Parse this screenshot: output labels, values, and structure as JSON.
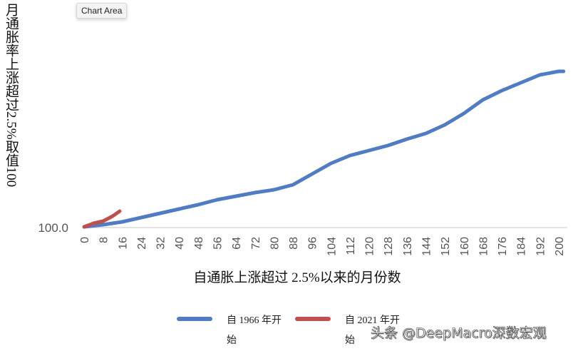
{
  "tooltip": {
    "label": "Chart Area"
  },
  "axes": {
    "y_title_parts": [
      "月通胀率上涨超过",
      "2.5%",
      "取值",
      "100"
    ],
    "y_tick_label": "100.0",
    "x_title": "自通胀上涨超过 2.5%以来的月份数",
    "x_ticks": [
      "0",
      "8",
      "16",
      "24",
      "32",
      "40",
      "48",
      "56",
      "64",
      "72",
      "80",
      "88",
      "96",
      "104",
      "112",
      "120",
      "128",
      "136",
      "144",
      "152",
      "160",
      "168",
      "176",
      "184",
      "192",
      "200"
    ]
  },
  "legend": [
    {
      "label_line1": "自 1966 年开",
      "label_line2": "始",
      "color": "#4f7cc2"
    },
    {
      "label_line1": "自 2021 年开",
      "label_line2": "始",
      "color": "#c0504d"
    }
  ],
  "watermark": "头条 @DeepMacro深数宏观",
  "chart_data": {
    "type": "line",
    "title": "",
    "xlabel": "自通胀上涨超过 2.5%以来的月份数",
    "ylabel": "月通胀率上涨超过 2.5%取值 100",
    "ylim": [
      100,
      330
    ],
    "xlim": [
      0,
      202
    ],
    "grid": false,
    "legend_position": "bottom",
    "y_ticks": [
      "100.0"
    ],
    "x_ticks": [
      0,
      8,
      16,
      24,
      32,
      40,
      48,
      56,
      64,
      72,
      80,
      88,
      96,
      104,
      112,
      120,
      128,
      136,
      144,
      152,
      160,
      168,
      176,
      184,
      192,
      200
    ],
    "series": [
      {
        "name": "自 1966 年开始",
        "color": "#4f7cc2",
        "x": [
          0,
          8,
          16,
          24,
          32,
          40,
          48,
          56,
          64,
          72,
          80,
          88,
          96,
          104,
          112,
          120,
          128,
          136,
          144,
          152,
          160,
          168,
          176,
          184,
          192,
          200,
          202
        ],
        "values": [
          100,
          103,
          107,
          113,
          119,
          125,
          131,
          138,
          143,
          148,
          152,
          159,
          174,
          189,
          200,
          207,
          214,
          223,
          231,
          243,
          259,
          278,
          291,
          302,
          313,
          318,
          318
        ]
      },
      {
        "name": "自 2021 年开始",
        "color": "#c0504d",
        "x": [
          0,
          4,
          8,
          12,
          15
        ],
        "values": [
          100,
          105,
          108,
          115,
          122
        ]
      }
    ],
    "annotations": []
  }
}
